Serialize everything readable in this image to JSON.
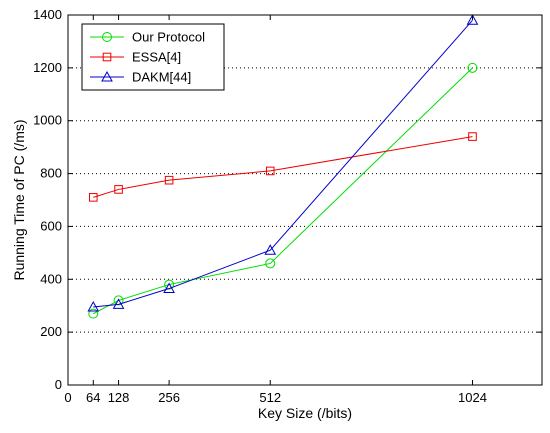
{
  "chart_data": {
    "type": "line",
    "xlabel": "Key Size (/bits)",
    "ylabel": "Running Time of PC (/ms)",
    "xlim": [
      0,
      1200
    ],
    "ylim": [
      0,
      1400
    ],
    "xticks": [
      0,
      64,
      128,
      256,
      512,
      1024
    ],
    "yticks": [
      0,
      200,
      400,
      600,
      800,
      1000,
      1200,
      1400
    ],
    "grid": "y-dotted",
    "legend_position": "top-left",
    "x": [
      64,
      128,
      256,
      512,
      1024
    ],
    "series": [
      {
        "name": "Our Protocol",
        "color": "#00dd00",
        "marker": "circle",
        "values": [
          270,
          320,
          380,
          460,
          1200
        ]
      },
      {
        "name": "ESSA[4]",
        "color": "#ee0000",
        "marker": "square",
        "values": [
          710,
          740,
          775,
          810,
          940
        ]
      },
      {
        "name": "DAKM[44]",
        "color": "#0000cc",
        "marker": "triangle",
        "values": [
          295,
          305,
          365,
          510,
          1380
        ]
      }
    ]
  }
}
